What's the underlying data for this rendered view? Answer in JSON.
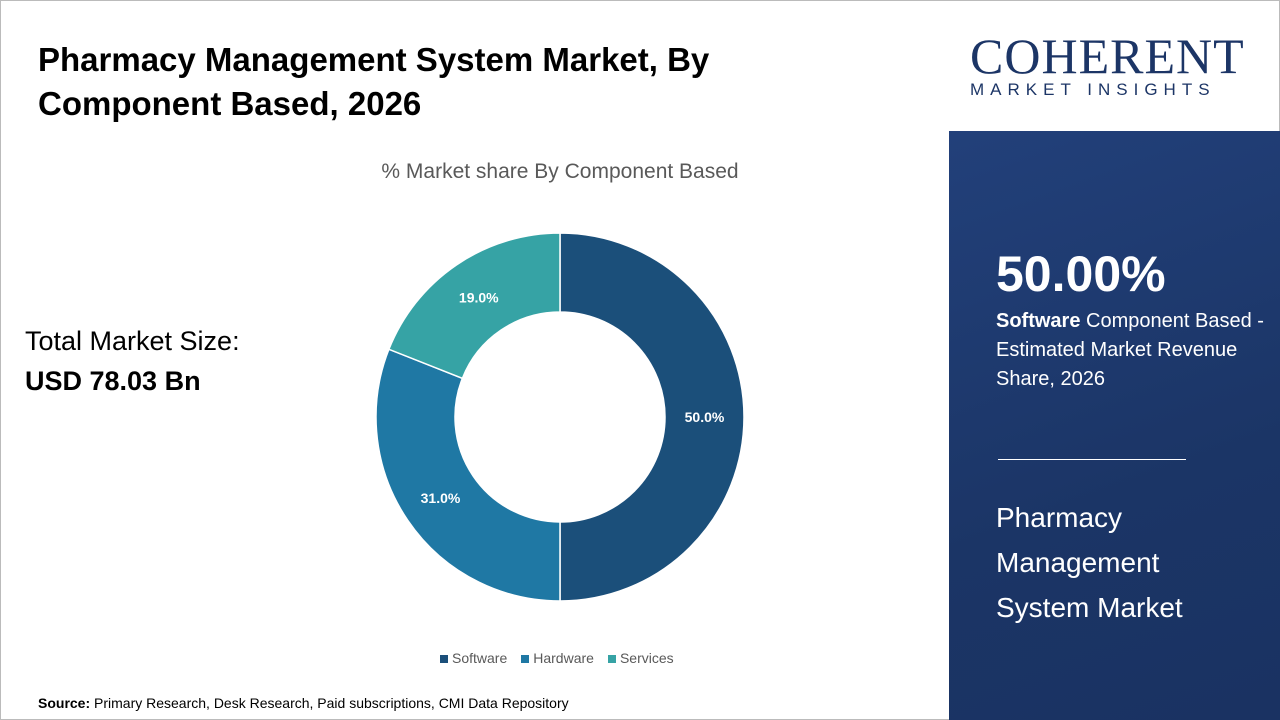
{
  "title": "Pharmacy Management System Market, By Component Based, 2026",
  "total_label": "Total Market Size:",
  "total_value": "USD 78.03 Bn",
  "source_label": "Source:",
  "source_text": " Primary Research, Desk Research, Paid subscriptions, CMI Data Repository",
  "logo": {
    "big": "COHERENT",
    "small": "MARKET INSIGHTS"
  },
  "highlight": {
    "percent": "50.00%",
    "segment": "Software",
    "desc": " Component Based - Estimated Market Revenue Share, 2026",
    "market": "Pharmacy Management System Market"
  },
  "chart_data": {
    "type": "pie",
    "donut": true,
    "title": "% Market share By Component Based",
    "categories": [
      "Software",
      "Hardware",
      "Services"
    ],
    "values": [
      50.0,
      31.0,
      19.0
    ],
    "labels": [
      "50.0%",
      "31.0%",
      "19.0%"
    ],
    "colors": [
      "#1b4f7a",
      "#1f78a4",
      "#36a3a5"
    ],
    "legend": "bottom"
  }
}
